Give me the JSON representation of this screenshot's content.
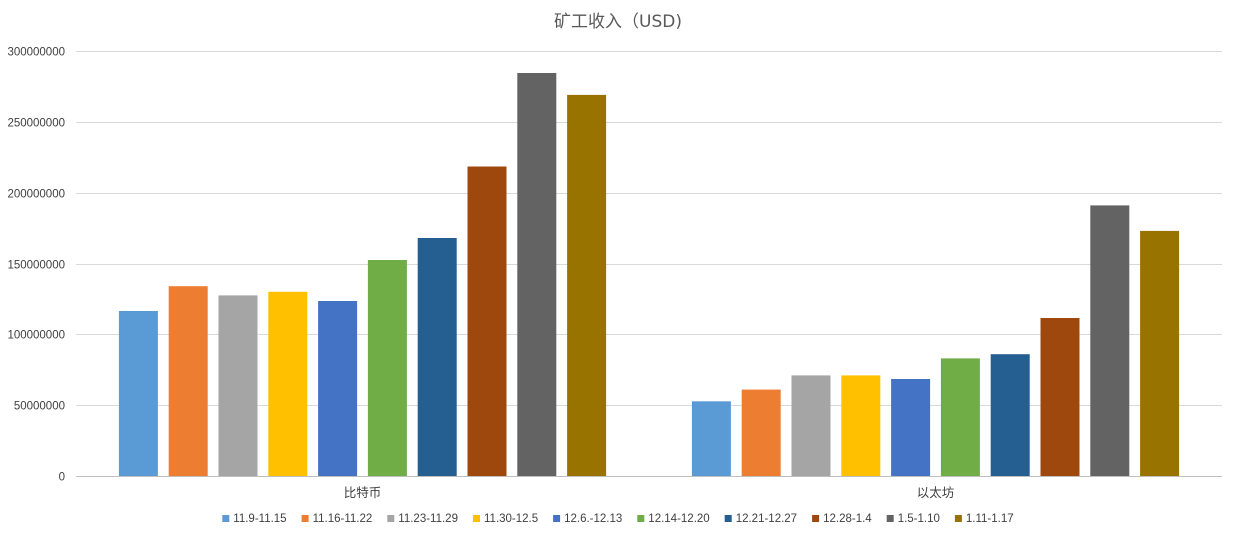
{
  "chart_data": {
    "type": "bar",
    "title": "矿工收入（USD)",
    "xlabel": "",
    "ylabel": "",
    "ylim": [
      0,
      300000000
    ],
    "yticks": [
      0,
      50000000,
      100000000,
      150000000,
      200000000,
      250000000,
      300000000
    ],
    "ytick_labels": [
      "0",
      "50000000",
      "100000000",
      "150000000",
      "200000000",
      "250000000",
      "300000000"
    ],
    "grid": true,
    "legend_position": "bottom",
    "categories": [
      "比特币",
      "以太坊"
    ],
    "series": [
      {
        "name": "11.9-11.15",
        "color": "#5B9BD5",
        "values": [
          116500000,
          52700000
        ]
      },
      {
        "name": "11.16-11.22",
        "color": "#ED7D31",
        "values": [
          134000000,
          61000000
        ]
      },
      {
        "name": "11.23-11.29",
        "color": "#A5A5A5",
        "values": [
          127500000,
          71000000
        ]
      },
      {
        "name": "11.30-12.5",
        "color": "#FFC000",
        "values": [
          130000000,
          71000000
        ]
      },
      {
        "name": "12.6.-12.13",
        "color": "#4472C4",
        "values": [
          123500000,
          68500000
        ]
      },
      {
        "name": "12.14-12.20",
        "color": "#70AD47",
        "values": [
          152500000,
          83000000
        ]
      },
      {
        "name": "12.21-12.27",
        "color": "#255E91",
        "values": [
          168000000,
          86000000
        ]
      },
      {
        "name": "12.28-1.4",
        "color": "#9E480E",
        "values": [
          218500000,
          111500000
        ]
      },
      {
        "name": "1.5-1.10",
        "color": "#636363",
        "values": [
          284500000,
          191000000
        ]
      },
      {
        "name": "1.11-1.17",
        "color": "#997300",
        "values": [
          269000000,
          173000000
        ]
      }
    ]
  }
}
